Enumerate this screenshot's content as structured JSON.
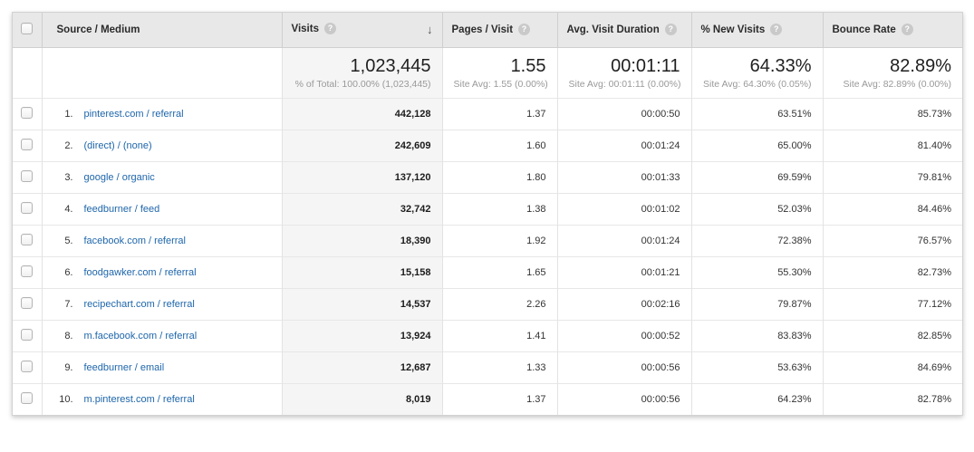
{
  "colors": {
    "link": "#1e66ab",
    "header_bg": "#e8e8e8",
    "sorted_column_bg": "#f5f5f5"
  },
  "icons": {
    "help": "?",
    "sort_desc": "↓"
  },
  "table": {
    "columns": [
      {
        "label": "Source / Medium"
      },
      {
        "label": "Visits",
        "sorted": "desc"
      },
      {
        "label": "Pages / Visit"
      },
      {
        "label": "Avg. Visit Duration"
      },
      {
        "label": "% New Visits"
      },
      {
        "label": "Bounce Rate"
      }
    ],
    "summary": {
      "visits": "1,023,445",
      "visits_note": "% of Total: 100.00% (1,023,445)",
      "pages": "1.55",
      "pages_note": "Site Avg: 1.55 (0.00%)",
      "duration": "00:01:11",
      "duration_note": "Site Avg: 00:01:11 (0.00%)",
      "new_visits": "64.33%",
      "new_visits_note": "Site Avg: 64.30% (0.05%)",
      "bounce": "82.89%",
      "bounce_note": "Site Avg: 82.89% (0.00%)"
    },
    "rows": [
      {
        "rank": "1.",
        "source": "pinterest.com / referral",
        "visits": "442,128",
        "pages": "1.37",
        "duration": "00:00:50",
        "new_visits": "63.51%",
        "bounce": "85.73%"
      },
      {
        "rank": "2.",
        "source": "(direct) / (none)",
        "visits": "242,609",
        "pages": "1.60",
        "duration": "00:01:24",
        "new_visits": "65.00%",
        "bounce": "81.40%"
      },
      {
        "rank": "3.",
        "source": "google / organic",
        "visits": "137,120",
        "pages": "1.80",
        "duration": "00:01:33",
        "new_visits": "69.59%",
        "bounce": "79.81%"
      },
      {
        "rank": "4.",
        "source": "feedburner / feed",
        "visits": "32,742",
        "pages": "1.38",
        "duration": "00:01:02",
        "new_visits": "52.03%",
        "bounce": "84.46%"
      },
      {
        "rank": "5.",
        "source": "facebook.com / referral",
        "visits": "18,390",
        "pages": "1.92",
        "duration": "00:01:24",
        "new_visits": "72.38%",
        "bounce": "76.57%"
      },
      {
        "rank": "6.",
        "source": "foodgawker.com / referral",
        "visits": "15,158",
        "pages": "1.65",
        "duration": "00:01:21",
        "new_visits": "55.30%",
        "bounce": "82.73%"
      },
      {
        "rank": "7.",
        "source": "recipechart.com / referral",
        "visits": "14,537",
        "pages": "2.26",
        "duration": "00:02:16",
        "new_visits": "79.87%",
        "bounce": "77.12%"
      },
      {
        "rank": "8.",
        "source": "m.facebook.com / referral",
        "visits": "13,924",
        "pages": "1.41",
        "duration": "00:00:52",
        "new_visits": "83.83%",
        "bounce": "82.85%"
      },
      {
        "rank": "9.",
        "source": "feedburner / email",
        "visits": "12,687",
        "pages": "1.33",
        "duration": "00:00:56",
        "new_visits": "53.63%",
        "bounce": "84.69%"
      },
      {
        "rank": "10.",
        "source": "m.pinterest.com / referral",
        "visits": "8,019",
        "pages": "1.37",
        "duration": "00:00:56",
        "new_visits": "64.23%",
        "bounce": "82.78%"
      }
    ]
  }
}
